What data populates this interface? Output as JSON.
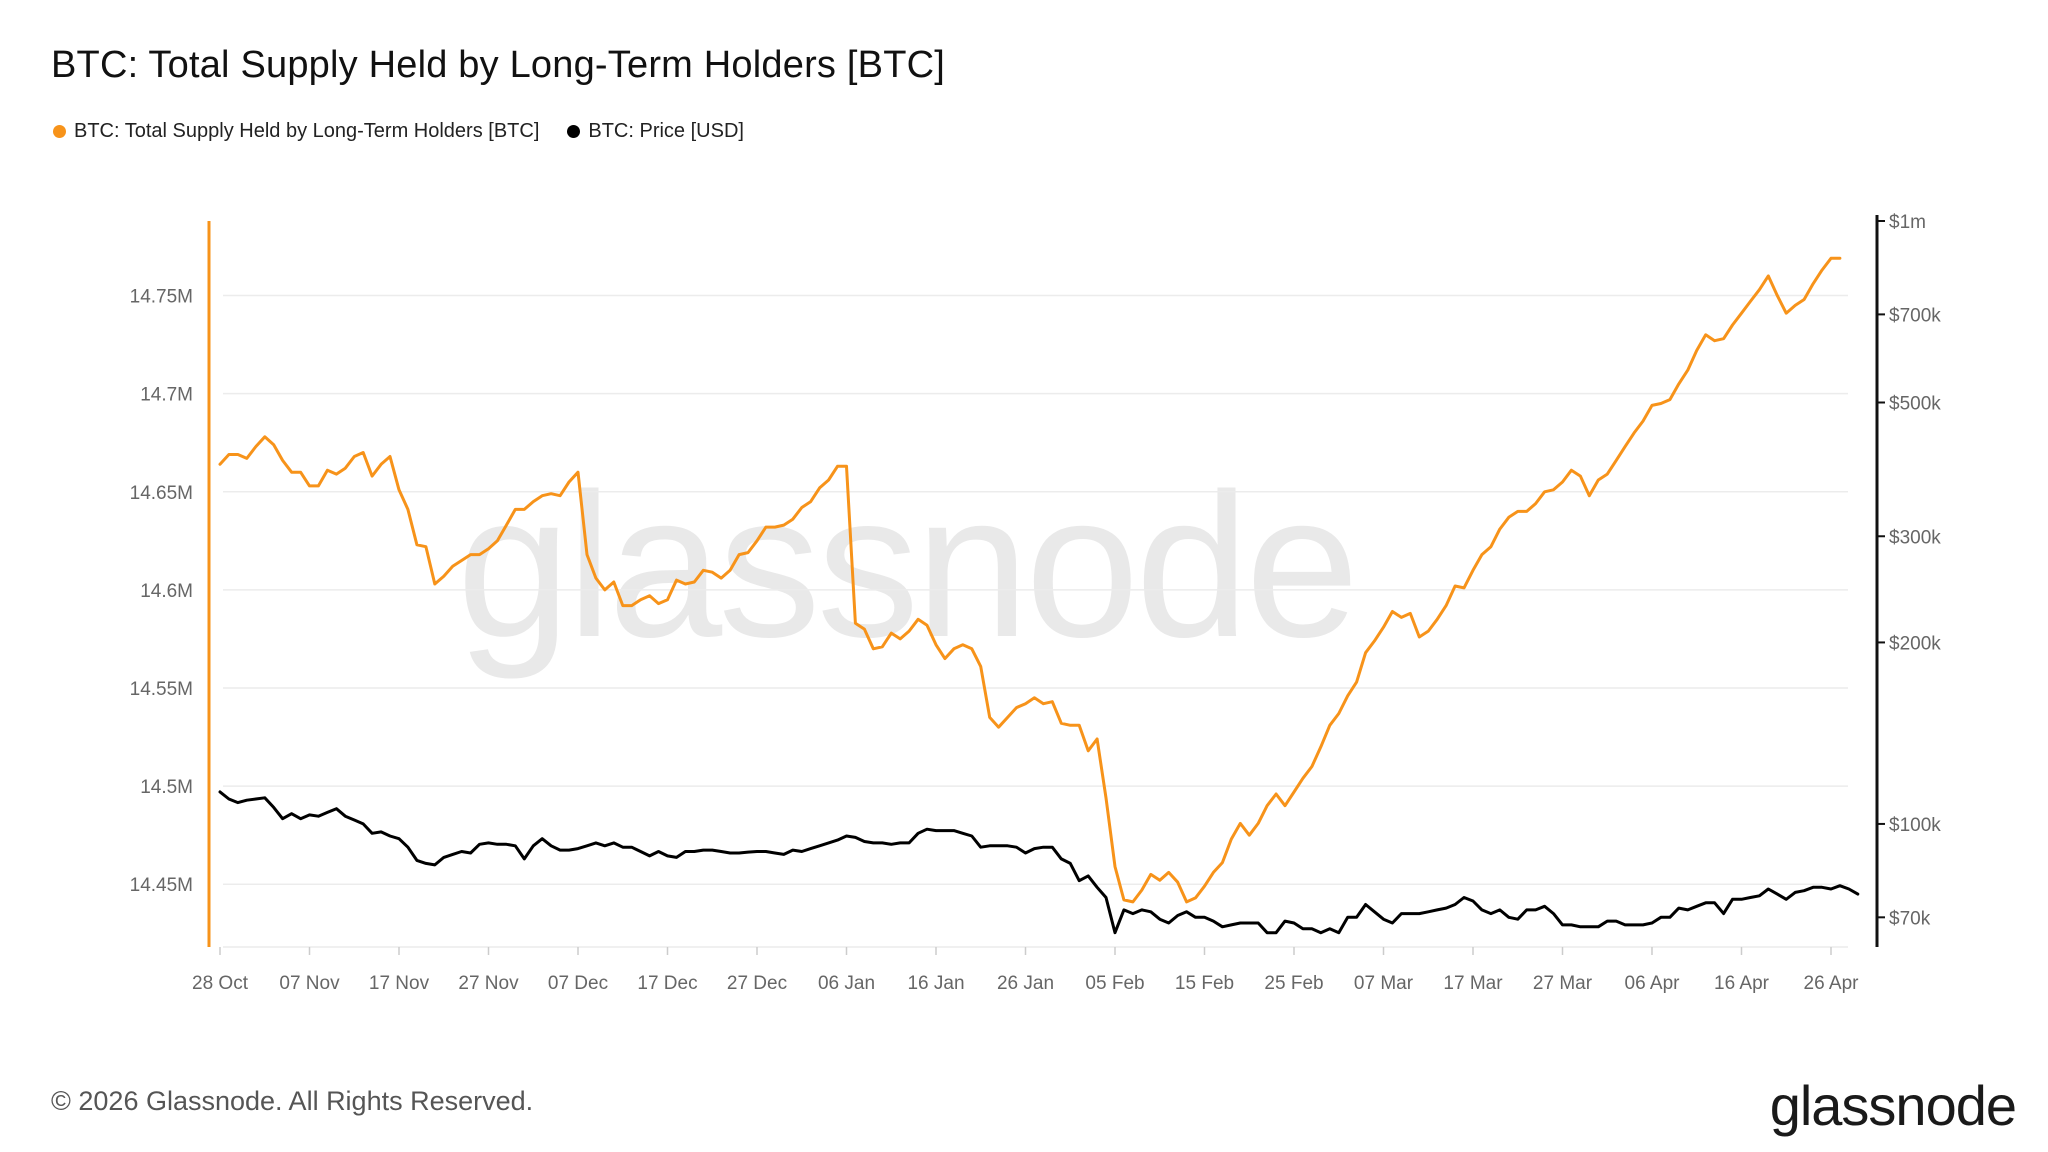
{
  "header": {
    "title": "BTC: Total Supply Held by Long-Term Holders [BTC]"
  },
  "legend": [
    {
      "label": "BTC: Total Supply Held by Long-Term Holders [BTC]",
      "color": "#f7931a"
    },
    {
      "label": "BTC: Price [USD]",
      "color": "#000000"
    }
  ],
  "footer": {
    "copyright": "© 2026 Glassnode. All Rights Reserved.",
    "brand": "glassnode",
    "watermark": "glassnode"
  },
  "chart_data": {
    "type": "line",
    "title": "BTC: Total Supply Held by Long-Term Holders [BTC]",
    "x_tick_labels": [
      "28 Oct",
      "07 Nov",
      "17 Nov",
      "27 Nov",
      "07 Dec",
      "17 Dec",
      "27 Dec",
      "06 Jan",
      "16 Jan",
      "26 Jan",
      "05 Feb",
      "15 Feb",
      "25 Feb",
      "07 Mar",
      "17 Mar",
      "27 Mar",
      "06 Apr",
      "16 Apr",
      "26 Apr"
    ],
    "left_axis": {
      "ticks": [
        14450000,
        14500000,
        14550000,
        14600000,
        14650000,
        14700000,
        14750000
      ],
      "tick_labels": [
        "14.45M",
        "14.5M",
        "14.55M",
        "14.6M",
        "14.65M",
        "14.7M",
        "14.75M"
      ],
      "range": [
        14418000,
        14788000
      ]
    },
    "right_axis": {
      "scale": "log",
      "ticks": [
        70000,
        100000,
        200000,
        300000,
        500000,
        700000,
        1000000
      ],
      "tick_labels": [
        "$70k",
        "$100k",
        "$200k",
        "$300k",
        "$500k",
        "$700k",
        "$1m"
      ],
      "range": [
        62500,
        1000000
      ]
    },
    "grid": true,
    "legend_position": "top-left",
    "series": [
      {
        "name": "BTC: Total Supply Held by Long-Term Holders [BTC]",
        "axis": "left",
        "color": "#f7931a",
        "start_date": "28 Oct",
        "step_days": 1,
        "values": [
          14664000,
          14669000,
          14669000,
          14667000,
          14673000,
          14678000,
          14674000,
          14666000,
          14660000,
          14660000,
          14653000,
          14653000,
          14661000,
          14659000,
          14662000,
          14668000,
          14670000,
          14658000,
          14664000,
          14668000,
          14651000,
          14641000,
          14623000,
          14622000,
          14603000,
          14607000,
          14612000,
          14615000,
          14618000,
          14618000,
          14621000,
          14625000,
          14633000,
          14641000,
          14641000,
          14645000,
          14648000,
          14649000,
          14648000,
          14655000,
          14660000,
          14618000,
          14606000,
          14600000,
          14604000,
          14592000,
          14592000,
          14595000,
          14597000,
          14593000,
          14595000,
          14605000,
          14603000,
          14604000,
          14610000,
          14609000,
          14606000,
          14610000,
          14618000,
          14619000,
          14625000,
          14632000,
          14632000,
          14633000,
          14636000,
          14642000,
          14645000,
          14652000,
          14656000,
          14663000,
          14663000,
          14583000,
          14580000,
          14570000,
          14571000,
          14578000,
          14575000,
          14579000,
          14585000,
          14582000,
          14572000,
          14565000,
          14570000,
          14572000,
          14570000,
          14561000,
          14535000,
          14530000,
          14535000,
          14540000,
          14542000,
          14545000,
          14542000,
          14543000,
          14532000,
          14531000,
          14531000,
          14518000,
          14524000,
          14494000,
          14459000,
          14442000,
          14441000,
          14447000,
          14455000,
          14452000,
          14456000,
          14451000,
          14441000,
          14443000,
          14449000,
          14456000,
          14461000,
          14473000,
          14481000,
          14475000,
          14481000,
          14490000,
          14496000,
          14490000,
          14497000,
          14504000,
          14510000,
          14520000,
          14531000,
          14537000,
          14546000,
          14553000,
          14568000,
          14574000,
          14581000,
          14589000,
          14586000,
          14588000,
          14576000,
          14579000,
          14585000,
          14592000,
          14602000,
          14601000,
          14610000,
          14618000,
          14622000,
          14631000,
          14637000,
          14640000,
          14640000,
          14644000,
          14650000,
          14651000,
          14655000,
          14661000,
          14658000,
          14648000,
          14656000,
          14659000,
          14666000,
          14673000,
          14680000,
          14686000,
          14694000,
          14695000,
          14697000,
          14705000,
          14712000,
          14722000,
          14730000,
          14727000,
          14728000,
          14735000,
          14741000,
          14747000,
          14753000,
          14760000,
          14750000,
          14741000,
          14745000,
          14748000,
          14756000,
          14763000,
          14769000,
          14769000
        ]
      },
      {
        "name": "BTC: Price [USD]",
        "axis": "right",
        "color": "#000000",
        "start_date": "28 Oct",
        "step_days": 1,
        "values": [
          113000,
          110000,
          108500,
          109500,
          110000,
          110500,
          106500,
          102000,
          104000,
          102000,
          103500,
          103000,
          104500,
          106000,
          103000,
          101500,
          100000,
          96500,
          97000,
          95500,
          94500,
          91500,
          87000,
          86000,
          85500,
          88000,
          89000,
          90000,
          89500,
          92500,
          93000,
          92500,
          92500,
          92000,
          87500,
          92000,
          94500,
          92000,
          90500,
          90500,
          91000,
          92000,
          93000,
          92000,
          93000,
          91500,
          91500,
          90000,
          88500,
          90000,
          88500,
          88000,
          90000,
          90000,
          90500,
          90500,
          90000,
          89500,
          89500,
          89800,
          90000,
          90000,
          89500,
          89000,
          90500,
          90000,
          91000,
          92000,
          93000,
          94000,
          95500,
          95000,
          93500,
          93000,
          93000,
          92500,
          93000,
          93000,
          96500,
          98000,
          97500,
          97500,
          97500,
          96500,
          95500,
          91500,
          92000,
          92000,
          92000,
          91500,
          89500,
          91000,
          91500,
          91500,
          87500,
          86000,
          80500,
          82000,
          78500,
          75500,
          66000,
          72000,
          71000,
          72000,
          71500,
          69500,
          68500,
          70500,
          71500,
          70000,
          70000,
          69000,
          67500,
          68000,
          68500,
          68500,
          68500,
          66000,
          66000,
          69000,
          68500,
          67000,
          67000,
          66000,
          67000,
          66000,
          70000,
          70000,
          73500,
          71500,
          69500,
          68500,
          71000,
          71000,
          71000,
          71500,
          72000,
          72500,
          73500,
          75500,
          74500,
          72000,
          71000,
          72000,
          70000,
          69500,
          72000,
          72000,
          73000,
          71000,
          68000,
          68000,
          67500,
          67500,
          67500,
          69000,
          69000,
          68000,
          68000,
          68000,
          68500,
          70000,
          70000,
          72500,
          72000,
          73000,
          74000,
          74000,
          71000,
          75000,
          75000,
          75500,
          76000,
          78000,
          76500,
          75000,
          77000,
          77500,
          78500,
          78500,
          78000,
          79000,
          78000,
          76500
        ]
      }
    ]
  }
}
